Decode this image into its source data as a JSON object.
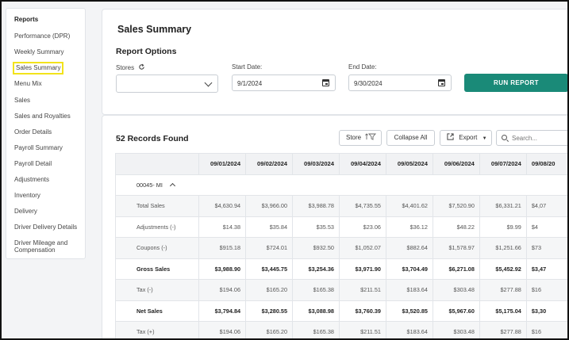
{
  "sidebar": {
    "heading": "Reports",
    "items": [
      {
        "label": "Performance (DPR)"
      },
      {
        "label": "Weekly Summary"
      },
      {
        "label": "Sales Summary"
      },
      {
        "label": "Menu Mix"
      },
      {
        "label": "Sales"
      },
      {
        "label": "Sales and Royalties"
      },
      {
        "label": "Order Details"
      },
      {
        "label": "Payroll Summary"
      },
      {
        "label": "Payroll Detail"
      },
      {
        "label": "Adjustments"
      },
      {
        "label": "Inventory"
      },
      {
        "label": "Delivery"
      },
      {
        "label": "Driver Delivery Details"
      },
      {
        "label": "Driver Mileage and"
      },
      {
        "label": "Compensation"
      }
    ]
  },
  "page": {
    "title": "Sales Summary",
    "options_title": "Report Options",
    "stores_label": "Stores",
    "start_label": "Start Date:",
    "start_value": "9/1/2024",
    "end_label": "End Date:",
    "end_value": "9/30/2024",
    "run_label": "RUN REPORT"
  },
  "results": {
    "count_text": "52 Records Found",
    "store_btn": "Store",
    "collapse_btn": "Collapse All",
    "export_btn": "Export",
    "search_placeholder": "Search...",
    "columns": [
      "09/01/2024",
      "09/02/2024",
      "09/03/2024",
      "09/04/2024",
      "09/05/2024",
      "09/06/2024",
      "09/07/2024",
      "09/08/20"
    ],
    "group": "00045- MI",
    "rows": [
      {
        "label": "Total Sales",
        "values": [
          "$4,630.94",
          "$3,966.00",
          "$3,988.78",
          "$4,735.55",
          "$4,401.62",
          "$7,520.90",
          "$6,331.21",
          "$4,07"
        ]
      },
      {
        "label": "Adjustments (-)",
        "values": [
          "$14.38",
          "$35.84",
          "$35.53",
          "$23.06",
          "$36.12",
          "$48.22",
          "$9.99",
          "$4"
        ]
      },
      {
        "label": "Coupons (-)",
        "values": [
          "$915.18",
          "$724.01",
          "$932.50",
          "$1,052.07",
          "$882.64",
          "$1,578.97",
          "$1,251.66",
          "$73"
        ]
      },
      {
        "label": "Gross Sales",
        "values": [
          "$3,988.90",
          "$3,445.75",
          "$3,254.36",
          "$3,971.90",
          "$3,704.49",
          "$6,271.08",
          "$5,452.92",
          "$3,47"
        ]
      },
      {
        "label": "Tax (-)",
        "values": [
          "$194.06",
          "$165.20",
          "$165.38",
          "$211.51",
          "$183.64",
          "$303.48",
          "$277.88",
          "$16"
        ]
      },
      {
        "label": "Net Sales",
        "values": [
          "$3,794.84",
          "$3,280.55",
          "$3,088.98",
          "$3,760.39",
          "$3,520.85",
          "$5,967.60",
          "$5,175.04",
          "$3,30"
        ]
      },
      {
        "label": "Tax (+)",
        "values": [
          "$194.06",
          "$165.20",
          "$165.38",
          "$211.51",
          "$183.64",
          "$303.48",
          "$277.88",
          "$16"
        ]
      }
    ]
  }
}
